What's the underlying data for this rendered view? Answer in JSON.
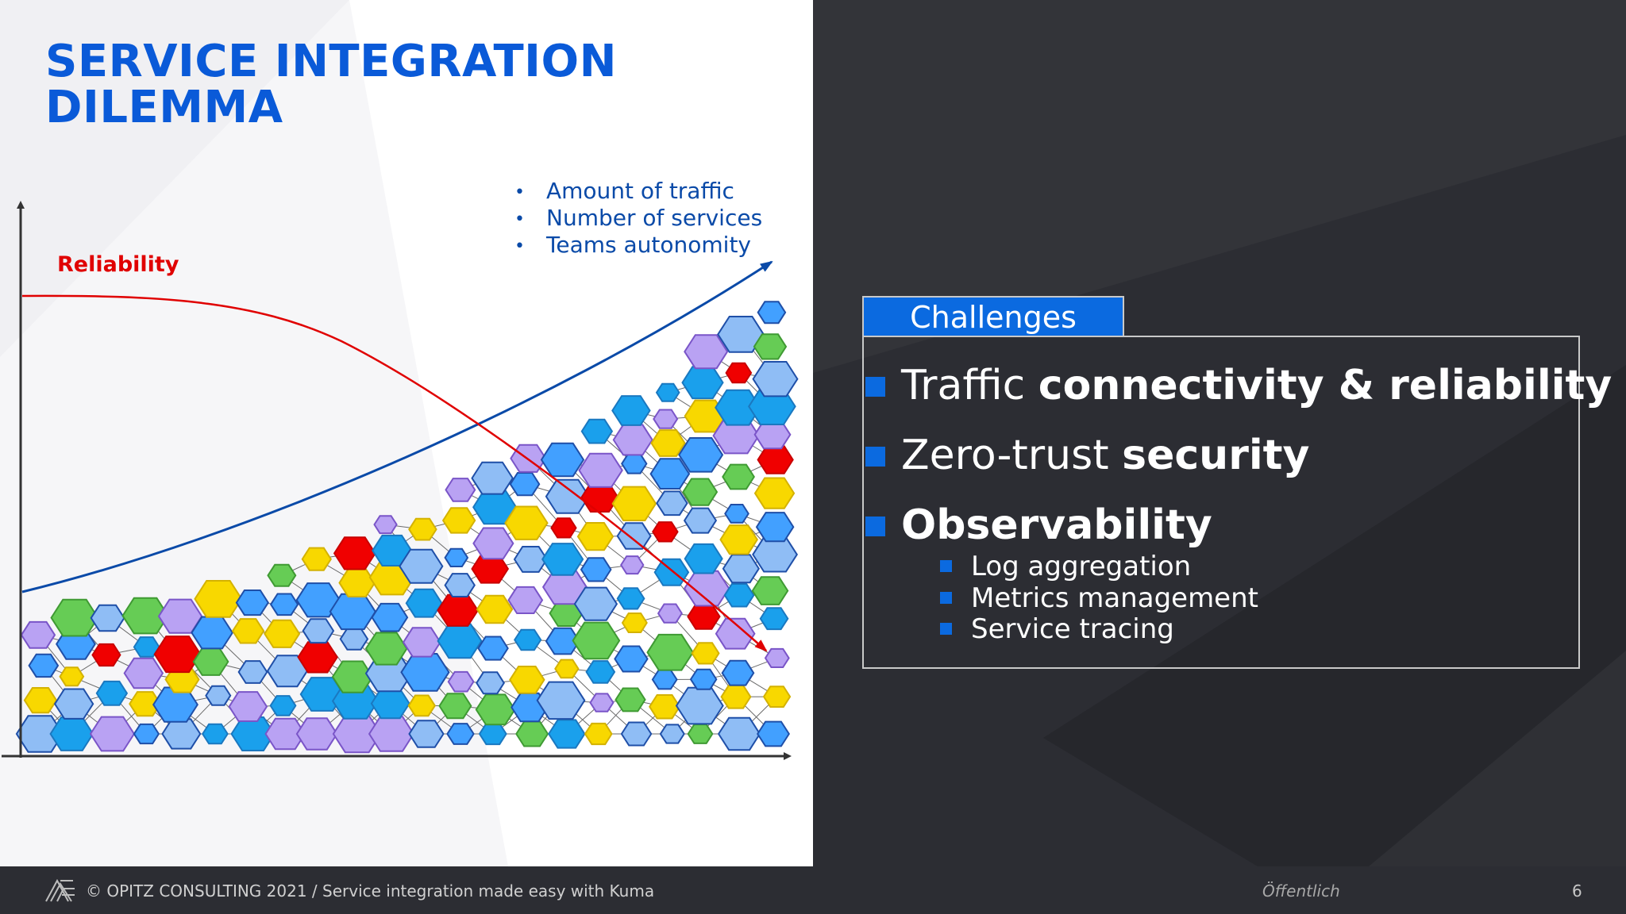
{
  "slide": {
    "title_line1": "SERVICE INTEGRATION",
    "title_line2": "DILEMMA",
    "page_number": "6"
  },
  "diagram": {
    "reliability_label": "Reliability",
    "growth_bullets": [
      "Amount of traffic",
      "Number of services",
      "Teams autonomity"
    ],
    "colors": {
      "title": "#0a5ad8",
      "reliability": "#e00000",
      "growth_arrow": "#0a4aa8",
      "hex_light_blue": "#8fbdf5",
      "hex_blue": "#42a0ff",
      "hex_cyan": "#1aa0ec",
      "hex_yellow": "#f8d800",
      "hex_purple": "#b9a2f3",
      "hex_red": "#f00000",
      "hex_green": "#66cc55"
    }
  },
  "challenges": {
    "header": "Challenges",
    "items": [
      {
        "normal": "Traffic ",
        "bold": "connectivity & reliability"
      },
      {
        "normal": "Zero-trust ",
        "bold": "security"
      },
      {
        "normal": "",
        "bold": "Observability"
      }
    ],
    "sub_items": [
      "Log aggregation",
      "Metrics management",
      "Service tracing"
    ],
    "accent_color": "#0b6ae0"
  },
  "footer": {
    "copyright": "© OPITZ CONSULTING 2021  /  Service integration made easy with Kuma",
    "classification": "Öffentlich",
    "logo_icon": "opitz-logo-icon"
  }
}
